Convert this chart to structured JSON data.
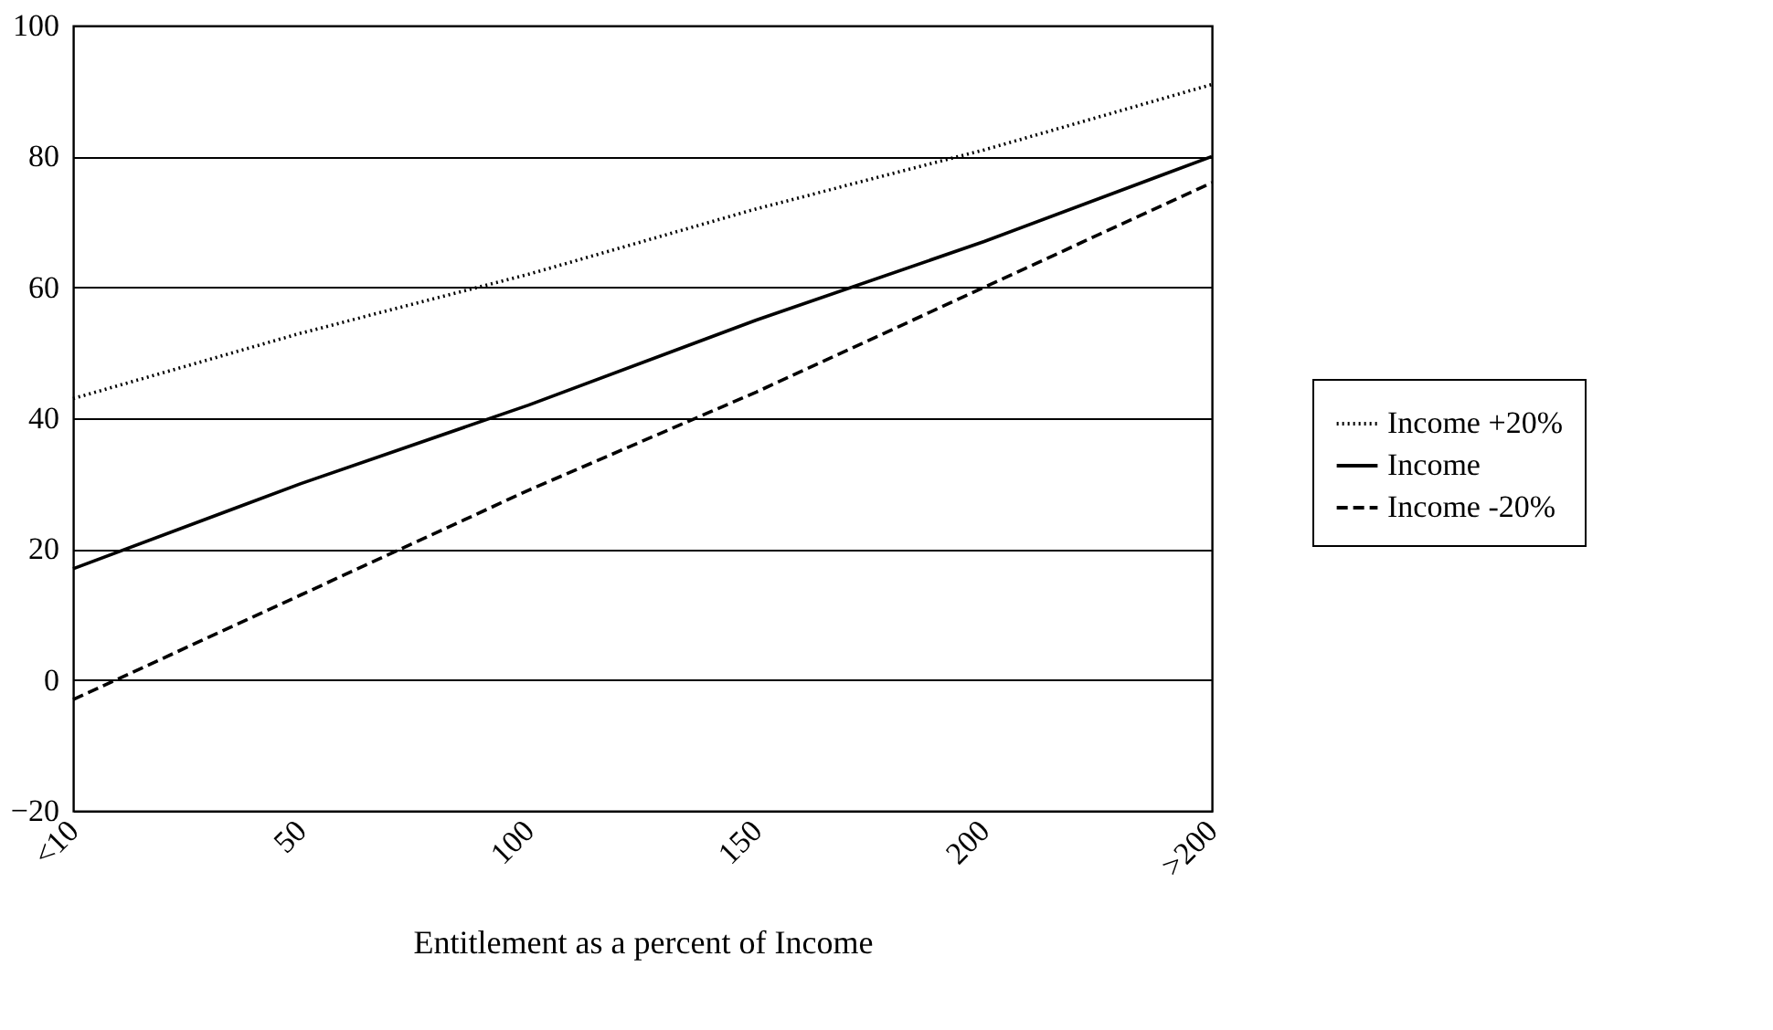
{
  "chart_data": {
    "type": "line",
    "xlabel": "Entitlement as a percent of Income",
    "categories": [
      "<10",
      "50",
      "100",
      "150",
      "200",
      ">200"
    ],
    "series": [
      {
        "name": "Income +20%",
        "color": "#000000",
        "line_style": "dotted",
        "values": [
          43,
          53,
          62,
          72,
          81,
          91
        ]
      },
      {
        "name": "Income",
        "color": "#000000",
        "line_style": "solid",
        "values": [
          17,
          30,
          42,
          55,
          67,
          80
        ]
      },
      {
        "name": "Income -20%",
        "color": "#000000",
        "line_style": "dashed",
        "values": [
          -3,
          13,
          29,
          44,
          60,
          76
        ]
      }
    ],
    "ylim": [
      -20,
      100
    ],
    "yticks": [
      -20,
      0,
      20,
      40,
      60,
      80,
      100
    ],
    "grid": "y",
    "legend": "right"
  }
}
